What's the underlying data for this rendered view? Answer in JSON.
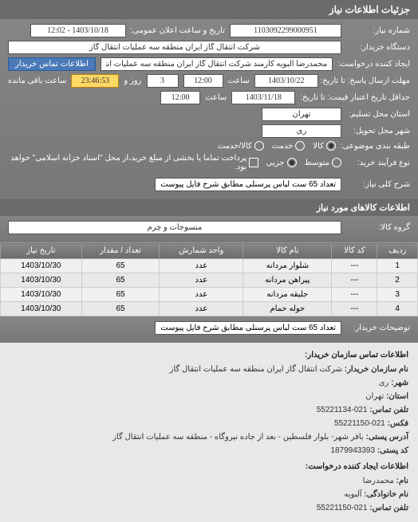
{
  "header": {
    "title": "جزئیات اطلاعات نیاز"
  },
  "form": {
    "request_no_label": "شماره نیاز:",
    "request_no": "1103092299000951",
    "public_date_label": "تاریخ و ساعت اعلان عمومی:",
    "public_date": "1403/10/18 - 12:02",
    "buyer_label": "دستگاه خریدار:",
    "buyer": "شرکت انتقال گاز ایران منطقه سه عملیات انتقال گاز",
    "creator_label": "ایجاد کننده درخواست:",
    "creator": "محمدرضا آلبویه کارمند شرکت انتقال گاز ایران منطقه سه عملیات انتقال گاز",
    "contact_btn": "اطلاعات تماس خریدار",
    "deadline_send_label": "مهلت ارسال پاسخ:",
    "to_label": "تا تاریخ:",
    "deadline_date": "1403/10/22",
    "time_label": "ساعت",
    "deadline_time": "12:00",
    "days_label": "روز و",
    "days_value": "3",
    "remain_time": "23:46:53",
    "remain_label": "ساعت باقی مانده",
    "validity_label": "حداقل تاریخ اعتبار قیمت:",
    "validity_date": "1403/11/18",
    "validity_time": "12:00",
    "location_label": "استان محل تسلیم:",
    "location": "تهران",
    "delivery_city_label": "شهر محل تحویل:",
    "delivery_city": "ری",
    "subject_type_label": "طبقه بندی موضوعی:",
    "radio_goods": "کالا",
    "radio_service": "خدمت",
    "radio_both": "کالا/خدمت",
    "purchase_type_label": "نوع فرآیند خرید:",
    "radio_medium": "متوسط",
    "radio_small": "جزیی",
    "purchase_note": "پرداخت تماما یا بخشی از مبلغ خرید،از محل \"اسناد خزانه اسلامی\" خواهد بود.",
    "main_desc_label": "شرح کلی نیاز:",
    "main_desc": "تعداد 65 ست لباس پرسنلی مطابق شرح فایل پیوست"
  },
  "goods_section": {
    "title": "اطلاعات کالاهای مورد نیاز",
    "group_label": "گروه کالا:",
    "group_value": "منسوجات و چرم"
  },
  "table": {
    "columns": [
      "ردیف",
      "کد کالا",
      "نام کالا",
      "واحد شمارش",
      "تعداد / مقدار",
      "تاریخ نیاز"
    ],
    "rows": [
      [
        "1",
        "---",
        "شلوار مردانه",
        "عدد",
        "65",
        "1403/10/30"
      ],
      [
        "2",
        "---",
        "پیراهن مردانه",
        "عدد",
        "65",
        "1403/10/30"
      ],
      [
        "3",
        "---",
        "جلیقه مردانه",
        "عدد",
        "65",
        "1403/10/30"
      ],
      [
        "4",
        "---",
        "حوله حمام",
        "عدد",
        "65",
        "1403/10/30"
      ]
    ]
  },
  "buyer_notes": {
    "label": "توضیحات خریدار:",
    "value": "تعداد 65 ست لباس پرسنلی مطابق شرح فایل پیوست"
  },
  "contact_info": {
    "org_heading": "اطلاعات تماس سازمان خریدار:",
    "org_name_label": "نام سازمان خریدار:",
    "org_name": "شرکت انتقال گاز ایران منطقه سه عملیات انتقال گاز",
    "city_label": "شهر:",
    "city": "ری",
    "province_label": "استان:",
    "province": "تهران",
    "phone_label": "تلفن تماس:",
    "phone": "021-55221134",
    "fax_label": "فکس:",
    "fax": "021-55221150",
    "address_label": "آدرس پستی:",
    "address": "باقر شهر- بلوار فلسطین - بعد از جاده نیروگاه - منطقه سه عملیات انتقال گاز",
    "postal_label": "کد پستی:",
    "postal": "1879943393",
    "creator_heading": "اطلاعات ایجاد کننده درخواست:",
    "creator_name_label": "نام:",
    "creator_name": "محمدرضا",
    "creator_family_label": "نام خانوادگی:",
    "creator_family": "آلبویه",
    "creator_phone_label": "تلفن تماس:",
    "creator_phone": "021-55221150"
  }
}
